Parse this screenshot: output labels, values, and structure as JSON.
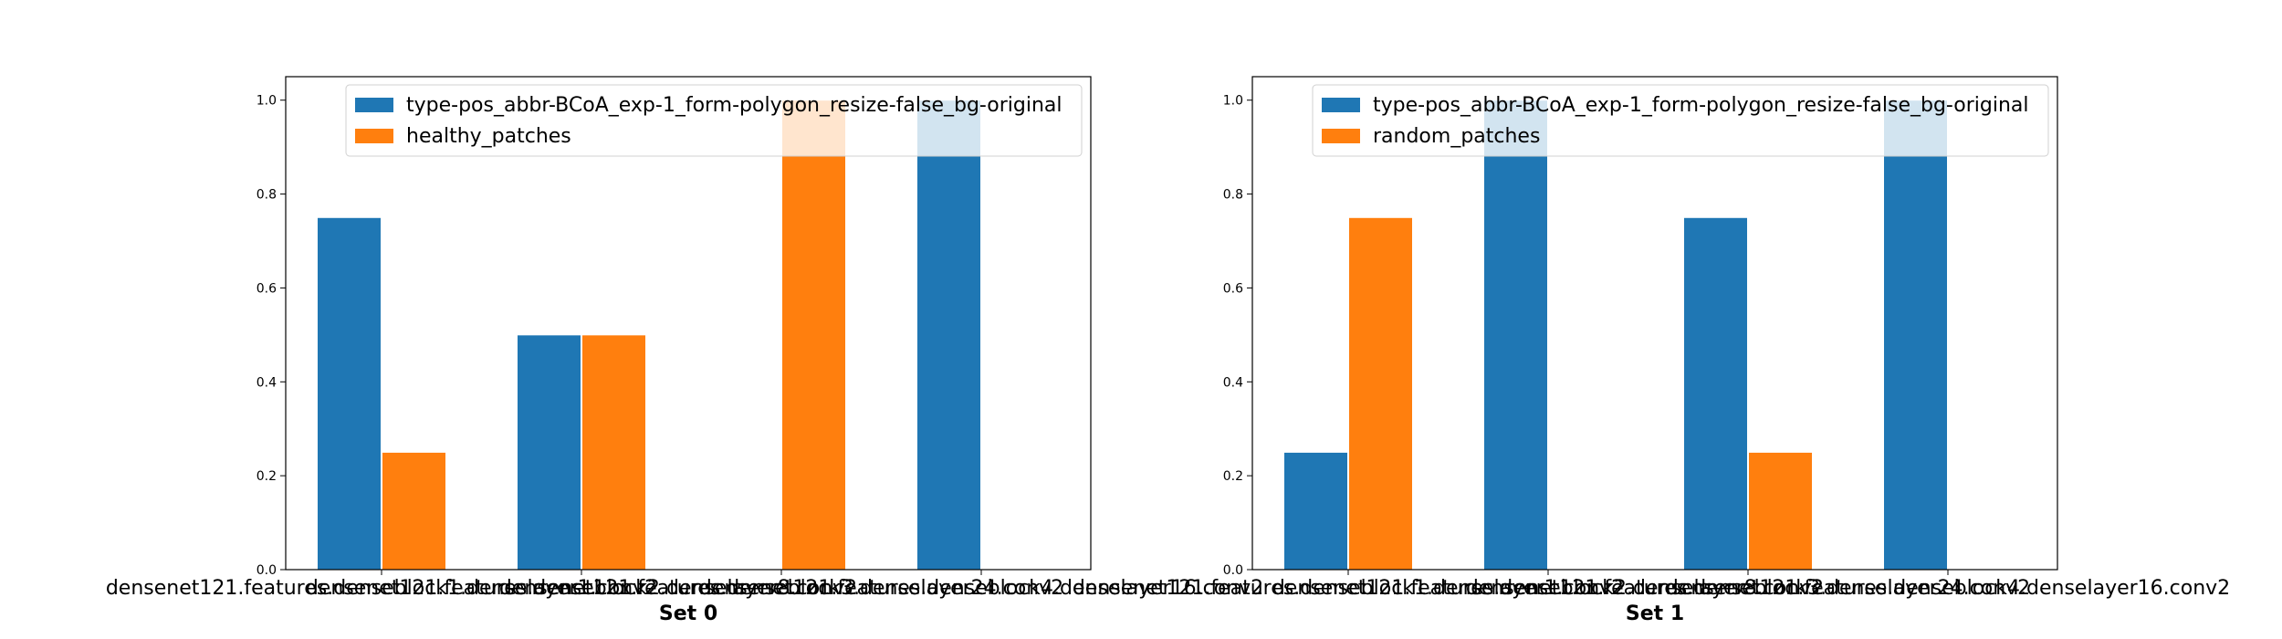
{
  "chart_data": [
    {
      "type": "bar",
      "xlabel": "Set 0",
      "categories": [
        "densenet121.features.denseblock1.denselayer1.conv2",
        "densenet121.features.denseblock2.denselayer8.conv2",
        "densenet121.features.denseblock3.denselayer24.conv2",
        "densenet121.features.denseblock4.denselayer16.conv2"
      ],
      "series": [
        {
          "name": "type-pos_abbr-BCoA_exp-1_form-polygon_resize-false_bg-original",
          "values": [
            0.75,
            0.5,
            0.0,
            1.0
          ],
          "color": "#1f77b4"
        },
        {
          "name": "healthy_patches",
          "values": [
            0.25,
            0.5,
            1.0,
            0.0
          ],
          "color": "#ff7f0e"
        }
      ],
      "ylim": [
        0,
        1.05
      ],
      "yticks": [
        "0.0",
        "0.2",
        "0.4",
        "0.6",
        "0.8",
        "1.0"
      ],
      "legend_loc": "upper-right",
      "grid": false
    },
    {
      "type": "bar",
      "xlabel": "Set 1",
      "categories": [
        "densenet121.features.denseblock1.denselayer1.conv2",
        "densenet121.features.denseblock2.denselayer8.conv2",
        "densenet121.features.denseblock3.denselayer24.conv2",
        "densenet121.features.denseblock4.denselayer16.conv2"
      ],
      "series": [
        {
          "name": "type-pos_abbr-BCoA_exp-1_form-polygon_resize-false_bg-original",
          "values": [
            0.25,
            1.0,
            0.75,
            1.0
          ],
          "color": "#1f77b4"
        },
        {
          "name": "random_patches",
          "values": [
            0.75,
            0.0,
            0.25,
            0.0
          ],
          "color": "#ff7f0e"
        }
      ],
      "ylim": [
        0,
        1.05
      ],
      "yticks": [
        "0.0",
        "0.2",
        "0.4",
        "0.6",
        "0.8",
        "1.0"
      ],
      "legend_loc": "upper-right",
      "grid": false
    }
  ]
}
